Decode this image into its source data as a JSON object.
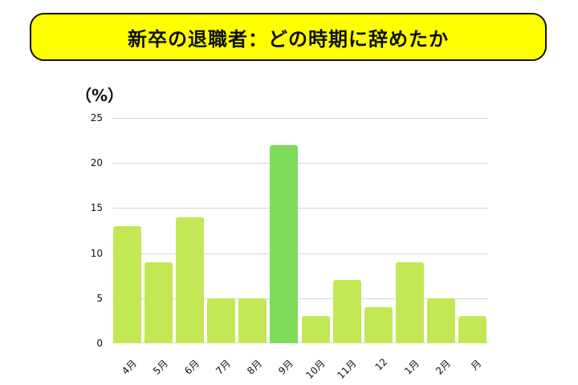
{
  "header": {
    "title": "新卒の退職者：どの時期に辞めたか"
  },
  "chart_data": {
    "type": "bar",
    "title": "新卒の退職者：どの時期に辞めたか",
    "xlabel": "",
    "ylabel": "（%）",
    "categories": [
      "4月",
      "5月",
      "6月",
      "7月",
      "8月",
      "9月",
      "10月",
      "11月",
      "12",
      "1月",
      "2月",
      "月"
    ],
    "values": [
      13,
      9,
      14,
      5,
      5,
      22,
      3,
      7,
      4,
      9,
      5,
      3
    ],
    "ylim": [
      0,
      25
    ],
    "yticks": [
      0,
      5,
      10,
      15,
      20,
      25
    ],
    "grid": true,
    "legend": null,
    "colors": {
      "default": "#c2e855",
      "highlight": "#7fdb5a",
      "highlight_index": 5
    }
  },
  "axis": {
    "unit_label": "（%）",
    "yticks": [
      "0",
      "5",
      "10",
      "15",
      "20",
      "25"
    ]
  }
}
